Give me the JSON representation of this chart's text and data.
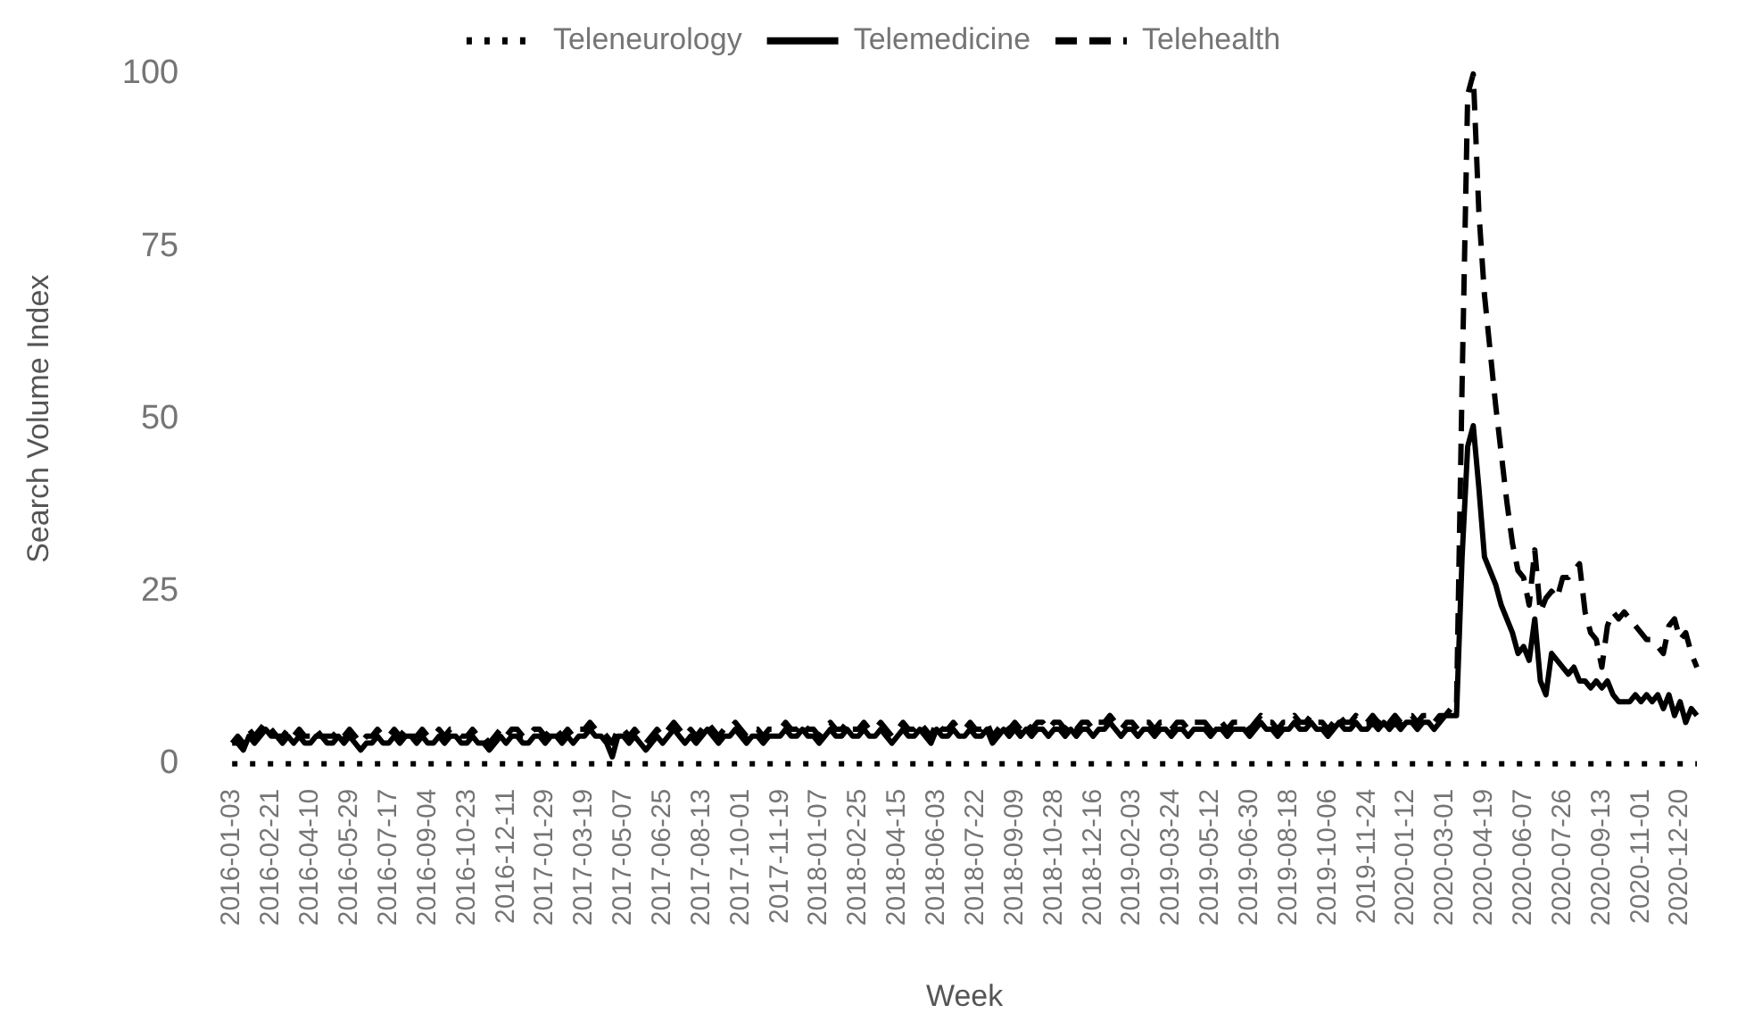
{
  "chart_data": {
    "type": "line",
    "xlabel": "Week",
    "ylabel": "Search Volume Index",
    "categories": [
      "2016-01-03",
      null,
      null,
      null,
      null,
      null,
      null,
      "2016-02-21",
      null,
      null,
      null,
      null,
      null,
      null,
      "2016-04-10",
      null,
      null,
      null,
      null,
      null,
      null,
      "2016-05-29",
      null,
      null,
      null,
      null,
      null,
      null,
      "2016-07-17",
      null,
      null,
      null,
      null,
      null,
      null,
      "2016-09-04",
      null,
      null,
      null,
      null,
      null,
      null,
      "2016-10-23",
      null,
      null,
      null,
      null,
      null,
      null,
      "2016-12-11",
      null,
      null,
      null,
      null,
      null,
      null,
      "2017-01-29",
      null,
      null,
      null,
      null,
      null,
      null,
      "2017-03-19",
      null,
      null,
      null,
      null,
      null,
      null,
      "2017-05-07",
      null,
      null,
      null,
      null,
      null,
      null,
      "2017-06-25",
      null,
      null,
      null,
      null,
      null,
      null,
      "2017-08-13",
      null,
      null,
      null,
      null,
      null,
      null,
      "2017-10-01",
      null,
      null,
      null,
      null,
      null,
      null,
      "2017-11-19",
      null,
      null,
      null,
      null,
      null,
      null,
      "2018-01-07",
      null,
      null,
      null,
      null,
      null,
      null,
      "2018-02-25",
      null,
      null,
      null,
      null,
      null,
      null,
      "2018-04-15",
      null,
      null,
      null,
      null,
      null,
      null,
      "2018-06-03",
      null,
      null,
      null,
      null,
      null,
      null,
      "2018-07-22",
      null,
      null,
      null,
      null,
      null,
      null,
      "2018-09-09",
      null,
      null,
      null,
      null,
      null,
      null,
      "2018-10-28",
      null,
      null,
      null,
      null,
      null,
      null,
      "2018-12-16",
      null,
      null,
      null,
      null,
      null,
      null,
      "2019-02-03",
      null,
      null,
      null,
      null,
      null,
      null,
      "2019-03-24",
      null,
      null,
      null,
      null,
      null,
      null,
      "2019-05-12",
      null,
      null,
      null,
      null,
      null,
      null,
      "2019-06-30",
      null,
      null,
      null,
      null,
      null,
      null,
      "2019-08-18",
      null,
      null,
      null,
      null,
      null,
      null,
      "2019-10-06",
      null,
      null,
      null,
      null,
      null,
      null,
      "2019-11-24",
      null,
      null,
      null,
      null,
      null,
      null,
      "2020-01-12",
      null,
      null,
      null,
      null,
      null,
      null,
      "2020-03-01",
      null,
      null,
      null,
      null,
      null,
      null,
      "2020-04-19",
      null,
      null,
      null,
      null,
      null,
      null,
      "2020-06-07",
      null,
      null,
      null,
      null,
      null,
      null,
      "2020-07-26",
      null,
      null,
      null,
      null,
      null,
      null,
      "2020-09-13",
      null,
      null,
      null,
      null,
      null,
      null,
      "2020-11-01",
      null,
      null,
      null,
      null,
      null,
      null,
      "2020-12-20",
      null,
      null,
      null
    ],
    "ylim": [
      0,
      100
    ],
    "yticks": [
      0,
      25,
      50,
      75,
      100
    ],
    "grid": false,
    "legend": "top",
    "marker": "none",
    "series": [
      {
        "name": "Teleneurology",
        "color": "#000000",
        "line_style": "dotted",
        "values": [
          0,
          0,
          0,
          0,
          0,
          0,
          0,
          0,
          0,
          0,
          0,
          0,
          0,
          0,
          0,
          0,
          0,
          0,
          0,
          0,
          0,
          0,
          0,
          0,
          0,
          0,
          0,
          0,
          0,
          0,
          0,
          0,
          0,
          0,
          0,
          0,
          0,
          0,
          0,
          0,
          0,
          0,
          0,
          0,
          0,
          0,
          0,
          0,
          0,
          0,
          0,
          0,
          0,
          0,
          0,
          0,
          0,
          0,
          0,
          0,
          0,
          0,
          0,
          0,
          0,
          0,
          0,
          0,
          0,
          0,
          0,
          0,
          0,
          0,
          0,
          0,
          0,
          0,
          0,
          0,
          0,
          0,
          0,
          0,
          0,
          0,
          0,
          0,
          0,
          0,
          0,
          0,
          0,
          0,
          0,
          0,
          0,
          0,
          0,
          0,
          0,
          0,
          0,
          0,
          0,
          0,
          0,
          0,
          0,
          0,
          0,
          0,
          0,
          0,
          0,
          0,
          0,
          0,
          0,
          0,
          0,
          0,
          0,
          0,
          0,
          0,
          0,
          0,
          0,
          0,
          0,
          0,
          0,
          0,
          0,
          0,
          0,
          0,
          0,
          0,
          0,
          0,
          0,
          0,
          0,
          0,
          0,
          0,
          0,
          0,
          0,
          0,
          0,
          0,
          0,
          0,
          0,
          0,
          0,
          0,
          0,
          0,
          0,
          0,
          0,
          0,
          0,
          0,
          0,
          0,
          0,
          0,
          0,
          0,
          0,
          0,
          0,
          0,
          0,
          0,
          0,
          0,
          0,
          0,
          0,
          0,
          0,
          0,
          0,
          0,
          0,
          0,
          0,
          0,
          0,
          0,
          0,
          0,
          0,
          0,
          0,
          0,
          0,
          0,
          0,
          0,
          0,
          0,
          0,
          0,
          0,
          0,
          0,
          0,
          0,
          0,
          0,
          0,
          0,
          0,
          0,
          0,
          0,
          0,
          0,
          0,
          0,
          0,
          0,
          0,
          0,
          0,
          0,
          0,
          0,
          0,
          0,
          0,
          0,
          0,
          0,
          0,
          0,
          0,
          0,
          0,
          0,
          0,
          0,
          0,
          0,
          0,
          0,
          0,
          0,
          0,
          0,
          0,
          0,
          0,
          0,
          0,
          0
        ]
      },
      {
        "name": "Telemedicine",
        "color": "#000000",
        "line_style": "solid",
        "values": [
          3,
          3,
          2,
          4,
          3,
          4,
          5,
          4,
          4,
          3,
          4,
          3,
          4,
          3,
          3,
          4,
          4,
          3,
          3,
          4,
          3,
          4,
          3,
          2,
          3,
          3,
          4,
          3,
          3,
          4,
          3,
          4,
          4,
          3,
          4,
          3,
          3,
          4,
          3,
          4,
          4,
          3,
          3,
          4,
          3,
          3,
          2,
          3,
          4,
          3,
          4,
          4,
          3,
          3,
          4,
          4,
          3,
          4,
          4,
          3,
          4,
          3,
          4,
          4,
          5,
          4,
          4,
          3,
          1,
          4,
          4,
          3,
          4,
          3,
          2,
          3,
          4,
          3,
          4,
          5,
          4,
          3,
          4,
          3,
          4,
          5,
          4,
          3,
          4,
          4,
          5,
          4,
          3,
          4,
          4,
          3,
          4,
          4,
          4,
          5,
          4,
          4,
          5,
          4,
          4,
          3,
          4,
          5,
          4,
          4,
          5,
          4,
          4,
          5,
          4,
          4,
          5,
          4,
          3,
          4,
          5,
          4,
          4,
          5,
          4,
          3,
          5,
          4,
          4,
          5,
          4,
          4,
          5,
          4,
          4,
          5,
          3,
          4,
          5,
          4,
          5,
          4,
          5,
          4,
          5,
          5,
          4,
          5,
          5,
          4,
          5,
          4,
          5,
          5,
          4,
          5,
          5,
          6,
          5,
          4,
          5,
          5,
          4,
          5,
          5,
          4,
          5,
          5,
          4,
          5,
          5,
          4,
          5,
          5,
          5,
          4,
          5,
          5,
          4,
          5,
          5,
          5,
          4,
          5,
          6,
          5,
          5,
          4,
          5,
          5,
          6,
          5,
          5,
          6,
          5,
          5,
          4,
          5,
          6,
          5,
          5,
          6,
          5,
          5,
          6,
          5,
          6,
          5,
          6,
          5,
          6,
          6,
          5,
          6,
          6,
          5,
          6,
          7,
          7,
          7,
          30,
          46,
          49,
          40,
          30,
          28,
          26,
          23,
          21,
          19,
          16,
          17,
          15,
          21,
          12,
          10,
          16,
          15,
          14,
          13,
          14,
          12,
          12,
          11,
          12,
          11,
          12,
          10,
          9,
          9,
          9,
          10,
          9,
          10,
          9,
          10,
          8,
          10,
          7,
          9,
          6,
          8,
          7
        ]
      },
      {
        "name": "Telehealth",
        "color": "#000000",
        "line_style": "dashed",
        "values": [
          3,
          4,
          3,
          5,
          4,
          5,
          6,
          5,
          4,
          4,
          5,
          4,
          5,
          4,
          4,
          5,
          4,
          4,
          4,
          5,
          4,
          5,
          4,
          3,
          4,
          4,
          5,
          4,
          4,
          5,
          4,
          5,
          4,
          4,
          5,
          4,
          4,
          5,
          4,
          5,
          5,
          4,
          4,
          5,
          4,
          4,
          3,
          4,
          5,
          4,
          5,
          5,
          4,
          4,
          5,
          5,
          4,
          5,
          5,
          4,
          5,
          4,
          5,
          5,
          6,
          5,
          5,
          4,
          3,
          5,
          5,
          4,
          5,
          4,
          3,
          4,
          5,
          4,
          5,
          6,
          5,
          4,
          5,
          4,
          5,
          6,
          5,
          4,
          5,
          5,
          6,
          5,
          4,
          5,
          5,
          4,
          5,
          5,
          5,
          6,
          5,
          5,
          6,
          5,
          5,
          4,
          5,
          6,
          5,
          5,
          6,
          5,
          5,
          6,
          5,
          5,
          6,
          5,
          4,
          5,
          6,
          5,
          5,
          6,
          5,
          4,
          6,
          5,
          5,
          6,
          5,
          5,
          6,
          5,
          5,
          6,
          4,
          5,
          6,
          5,
          6,
          5,
          6,
          5,
          6,
          6,
          5,
          6,
          6,
          5,
          6,
          5,
          6,
          6,
          5,
          6,
          6,
          7,
          6,
          5,
          6,
          6,
          5,
          6,
          6,
          5,
          6,
          6,
          5,
          6,
          6,
          5,
          6,
          6,
          6,
          5,
          6,
          6,
          5,
          6,
          6,
          6,
          5,
          6,
          7,
          6,
          6,
          5,
          6,
          6,
          7,
          6,
          6,
          7,
          6,
          6,
          5,
          6,
          7,
          6,
          6,
          7,
          6,
          6,
          7,
          6,
          7,
          6,
          7,
          6,
          7,
          7,
          6,
          7,
          7,
          6,
          7,
          7,
          8,
          8,
          55,
          97,
          100,
          80,
          68,
          60,
          52,
          45,
          38,
          32,
          28,
          27,
          23,
          31,
          22,
          24,
          25,
          24,
          27,
          27,
          28,
          29,
          22,
          19,
          18,
          14,
          20,
          22,
          21,
          22,
          21,
          20,
          19,
          18,
          18,
          17,
          16,
          20,
          21,
          18,
          19,
          16,
          14
        ]
      }
    ]
  }
}
